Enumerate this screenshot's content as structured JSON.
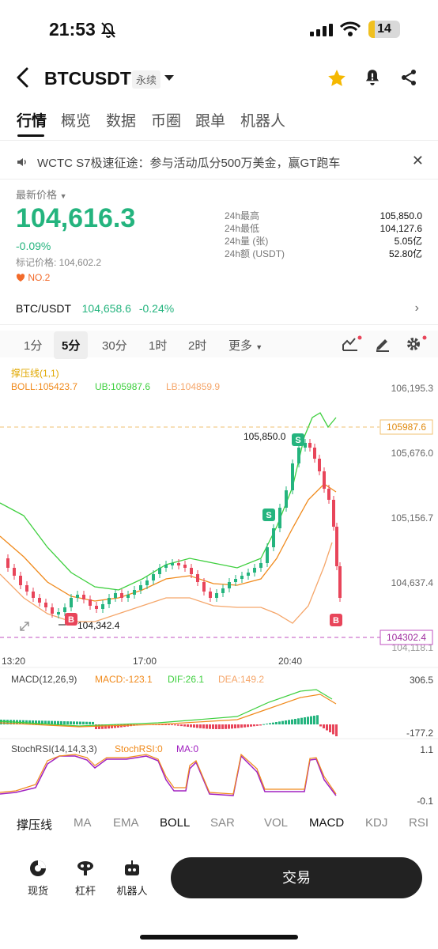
{
  "status_bar": {
    "time": "21:53",
    "battery": "14"
  },
  "header": {
    "symbol": "BTCUSDT",
    "contract_type": "永续"
  },
  "tabs": [
    "行情",
    "概览",
    "数据",
    "币圈",
    "跟单",
    "机器人"
  ],
  "notice": {
    "text": "WCTC S7极速征途：参与活动瓜分500万美金，赢GT跑车"
  },
  "price": {
    "label": "最新价格",
    "last": "104,616.3",
    "change": "-0.09%",
    "mark_price": "标记价格: 104,602.2",
    "rank": "NO.2"
  },
  "stats": [
    {
      "k": "24h最高",
      "v": "105,850.0"
    },
    {
      "k": "24h最低",
      "v": "104,127.6"
    },
    {
      "k": "24h量 (张)",
      "v": "5.05亿"
    },
    {
      "k": "24h额 (USDT)",
      "v": "52.80亿"
    }
  ],
  "spot": {
    "pair": "BTC/USDT",
    "price": "104,658.6",
    "change": "-0.24%"
  },
  "intervals": [
    "1分",
    "5分",
    "30分",
    "1时",
    "2时",
    "更多"
  ],
  "chart_data": {
    "type": "candlestick",
    "indicators_text": {
      "main_name": "撑压线(1,1)",
      "boll": "BOLL:105423.7",
      "ub": "UB:105987.6",
      "lb": "LB:104859.9",
      "macd_name": "MACD(12,26,9)",
      "macd": "MACD:-123.1",
      "dif": "DIF:26.1",
      "dea": "DEA:149.2",
      "stoch_name": "StochRSI(14,14,3,3)",
      "stoch": "StochRSI:0",
      "ma": "MA:0"
    },
    "y_ticks": [
      "106,195.3",
      "105,676.0",
      "105,156.7",
      "104,637.4",
      "104,118.1"
    ],
    "x_ticks": [
      "13:20",
      "17:00",
      "20:40"
    ],
    "price_tags": {
      "ub": "105987.6",
      "current": "104302.4"
    },
    "high_label": "105,850.0",
    "low_label": "104,342.4",
    "macd_ticks": [
      "306.5",
      "-177.2"
    ],
    "stoch_ticks": [
      "1.1",
      "-0.1"
    ],
    "ylim": [
      104118.1,
      106195.3
    ],
    "colors": {
      "up": "#24b47e",
      "down": "#e8455a",
      "boll": "#f08a1c",
      "ub": "#3ecf3e",
      "lb": "#f5a66a"
    }
  },
  "indicator_tabs": [
    "撑压线",
    "MA",
    "EMA",
    "BOLL",
    "SAR",
    "VOL",
    "MACD",
    "KDJ",
    "RSI"
  ],
  "bottom_nav": {
    "spot": "现货",
    "leverage": "杠杆",
    "bot": "机器人",
    "trade": "交易"
  }
}
